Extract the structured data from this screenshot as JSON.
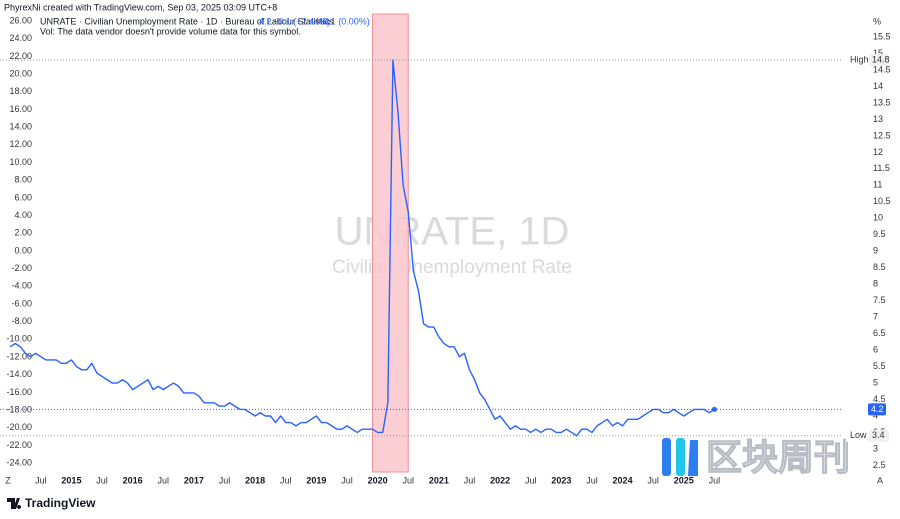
{
  "header": {
    "credit": "PhyrexNi created with TradingView.com, Sep 03, 2025 03:09 UTC+8",
    "symbol": "UNRATE · Civilian Unemployment Rate · 1D · Bureau of Labour Statistics",
    "price": "4.2",
    "change": "+0.1 (+2.44%)",
    "change2": "+0.1 (0.00%)",
    "volume_note": "Vol: The data vendor doesn't provide volume data for this symbol."
  },
  "watermark": {
    "title": "UNRATE, 1D",
    "subtitle": "Civilian Unemployment Rate"
  },
  "ui": {
    "left_button": "Z",
    "right_button": "A",
    "brand": "TradingView",
    "overlay_logo": "区块周刊"
  },
  "chart_data": {
    "type": "line",
    "y2_unit": "%",
    "grid": false,
    "xlim": [
      "2013-11",
      "2027-08"
    ],
    "ylim": [
      -25,
      26.8
    ],
    "y2lim": [
      2.3,
      16.2
    ],
    "yticks": [
      {
        "value": 26,
        "label": "26.00"
      },
      {
        "value": 24,
        "label": "24.00"
      },
      {
        "value": 22,
        "label": "22.00"
      },
      {
        "value": 20,
        "label": "20.00"
      },
      {
        "value": 18,
        "label": "18.00"
      },
      {
        "value": 16,
        "label": "16.00"
      },
      {
        "value": 14,
        "label": "14.00"
      },
      {
        "value": 12,
        "label": "12.00"
      },
      {
        "value": 10,
        "label": "10.00"
      },
      {
        "value": 8,
        "label": "8.00"
      },
      {
        "value": 6,
        "label": "6.00"
      },
      {
        "value": 4,
        "label": "4.00"
      },
      {
        "value": 2,
        "label": "2.00"
      },
      {
        "value": 0,
        "label": "0.00"
      },
      {
        "value": -2,
        "label": "-2.00"
      },
      {
        "value": -4,
        "label": "-4.00"
      },
      {
        "value": -6,
        "label": "-6.00"
      },
      {
        "value": -8,
        "label": "-8.00"
      },
      {
        "value": -10,
        "label": "-10.00"
      },
      {
        "value": -12,
        "label": "-12.00"
      },
      {
        "value": -14,
        "label": "-14.00"
      },
      {
        "value": -16,
        "label": "-16.00"
      },
      {
        "value": -18,
        "label": "-18.00"
      },
      {
        "value": -20,
        "label": "-20.00"
      },
      {
        "value": -22,
        "label": "-22.00"
      },
      {
        "value": -24,
        "label": "-24.00"
      }
    ],
    "y2ticks": [
      15.5,
      15,
      14.5,
      14,
      13.5,
      13,
      12.5,
      12,
      11.5,
      11,
      10.5,
      10,
      9.5,
      9,
      8.5,
      8,
      7.5,
      7,
      6.5,
      6,
      5.5,
      5,
      4.5,
      4,
      3.5,
      3,
      2.5
    ],
    "xticks": [
      {
        "value": "2014-07",
        "label": "Jul"
      },
      "2015",
      {
        "value": "2015-07",
        "label": "Jul"
      },
      "2016",
      {
        "value": "2016-07",
        "label": "Jul"
      },
      "2017",
      {
        "value": "2017-07",
        "label": "Jul"
      },
      "2018",
      {
        "value": "2018-07",
        "label": "Jul"
      },
      "2019",
      {
        "value": "2019-07",
        "label": "Jul"
      },
      "2020",
      {
        "value": "2020-07",
        "label": "Jul"
      },
      "2021",
      {
        "value": "2021-07",
        "label": "Jul"
      },
      "2022",
      {
        "value": "2022-07",
        "label": "Jul"
      },
      "2023",
      {
        "value": "2023-07",
        "label": "Jul"
      },
      "2024",
      {
        "value": "2024-07",
        "label": "Jul"
      },
      "2025",
      {
        "value": "2025-07",
        "label": "Jul"
      }
    ],
    "highlight_range": [
      "2019-12",
      "2020-07"
    ],
    "markers": {
      "high": {
        "label": "High",
        "value": 14.8
      },
      "low": {
        "label": "Low",
        "value": 3.4
      },
      "last": 4.2
    },
    "x": [
      "2014-01",
      "2014-02",
      "2014-03",
      "2014-04",
      "2014-05",
      "2014-06",
      "2014-07",
      "2014-08",
      "2014-09",
      "2014-10",
      "2014-11",
      "2014-12",
      "2015-01",
      "2015-02",
      "2015-03",
      "2015-04",
      "2015-05",
      "2015-06",
      "2015-07",
      "2015-08",
      "2015-09",
      "2015-10",
      "2015-11",
      "2015-12",
      "2016-01",
      "2016-02",
      "2016-03",
      "2016-04",
      "2016-05",
      "2016-06",
      "2016-07",
      "2016-08",
      "2016-09",
      "2016-10",
      "2016-11",
      "2016-12",
      "2017-01",
      "2017-02",
      "2017-03",
      "2017-04",
      "2017-05",
      "2017-06",
      "2017-07",
      "2017-08",
      "2017-09",
      "2017-10",
      "2017-11",
      "2017-12",
      "2018-01",
      "2018-02",
      "2018-03",
      "2018-04",
      "2018-05",
      "2018-06",
      "2018-07",
      "2018-08",
      "2018-09",
      "2018-10",
      "2018-11",
      "2018-12",
      "2019-01",
      "2019-02",
      "2019-03",
      "2019-04",
      "2019-05",
      "2019-06",
      "2019-07",
      "2019-08",
      "2019-09",
      "2019-10",
      "2019-11",
      "2019-12",
      "2020-01",
      "2020-02",
      "2020-03",
      "2020-04",
      "2020-05",
      "2020-06",
      "2020-07",
      "2020-08",
      "2020-09",
      "2020-10",
      "2020-11",
      "2020-12",
      "2021-01",
      "2021-02",
      "2021-03",
      "2021-04",
      "2021-05",
      "2021-06",
      "2021-07",
      "2021-08",
      "2021-09",
      "2021-10",
      "2021-11",
      "2021-12",
      "2022-01",
      "2022-02",
      "2022-03",
      "2022-04",
      "2022-05",
      "2022-06",
      "2022-07",
      "2022-08",
      "2022-09",
      "2022-10",
      "2022-11",
      "2022-12",
      "2023-01",
      "2023-02",
      "2023-03",
      "2023-04",
      "2023-05",
      "2023-06",
      "2023-07",
      "2023-08",
      "2023-09",
      "2023-10",
      "2023-11",
      "2023-12",
      "2024-01",
      "2024-02",
      "2024-03",
      "2024-04",
      "2024-05",
      "2024-06",
      "2024-07",
      "2024-08",
      "2024-09",
      "2024-10",
      "2024-11",
      "2024-12",
      "2025-01",
      "2025-02",
      "2025-03",
      "2025-04",
      "2025-05",
      "2025-06",
      "2025-07"
    ],
    "series": [
      {
        "name": "UNRATE",
        "color": "#2962ff",
        "axis": "y2",
        "values": [
          6.1,
          6.2,
          6.1,
          5.9,
          5.8,
          5.9,
          5.8,
          5.7,
          5.7,
          5.7,
          5.6,
          5.6,
          5.7,
          5.5,
          5.4,
          5.4,
          5.6,
          5.3,
          5.2,
          5.1,
          5.0,
          5.0,
          5.1,
          5.0,
          4.8,
          4.9,
          5.0,
          5.1,
          4.8,
          4.9,
          4.8,
          4.9,
          5.0,
          4.9,
          4.7,
          4.7,
          4.7,
          4.6,
          4.4,
          4.4,
          4.4,
          4.3,
          4.3,
          4.4,
          4.3,
          4.2,
          4.2,
          4.1,
          4.0,
          4.1,
          4.0,
          4.0,
          3.8,
          4.0,
          3.8,
          3.8,
          3.7,
          3.8,
          3.8,
          3.9,
          4.0,
          3.8,
          3.8,
          3.7,
          3.6,
          3.6,
          3.7,
          3.6,
          3.5,
          3.6,
          3.6,
          3.6,
          3.5,
          3.5,
          4.4,
          14.8,
          13.2,
          11.0,
          10.2,
          8.4,
          7.8,
          6.8,
          6.7,
          6.7,
          6.4,
          6.2,
          6.1,
          6.1,
          5.8,
          5.9,
          5.4,
          5.1,
          4.7,
          4.5,
          4.2,
          3.9,
          4.0,
          3.8,
          3.6,
          3.7,
          3.6,
          3.6,
          3.5,
          3.6,
          3.5,
          3.6,
          3.6,
          3.5,
          3.5,
          3.6,
          3.5,
          3.4,
          3.6,
          3.6,
          3.5,
          3.7,
          3.8,
          3.9,
          3.7,
          3.8,
          3.7,
          3.9,
          3.9,
          3.9,
          4.0,
          4.1,
          4.2,
          4.2,
          4.1,
          4.1,
          4.2,
          4.1,
          4.0,
          4.1,
          4.2,
          4.2,
          4.2,
          4.1,
          4.2
        ]
      }
    ]
  }
}
